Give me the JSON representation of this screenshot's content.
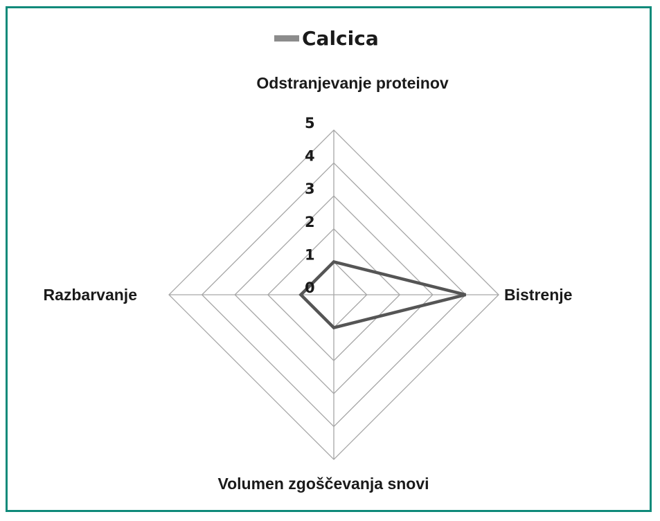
{
  "chart_data": {
    "type": "radar",
    "axes": [
      "Odstranjevanje proteinov",
      "Bistrenje",
      "Volumen zgoščevanja snovi",
      "Razbarvanje"
    ],
    "series": [
      {
        "name": "Calcica",
        "values": [
          1,
          4,
          1,
          1
        ],
        "color": "#555555"
      }
    ],
    "rlim": [
      0,
      5
    ],
    "ticks": [
      "0",
      "1",
      "2",
      "3",
      "4",
      "5"
    ],
    "legend_position": "top",
    "legend_swatch_color": "#8c8c8c",
    "grid_color": "#a6a6a6",
    "grid": true
  },
  "frame": {
    "border_color": "#0f8a7a"
  }
}
